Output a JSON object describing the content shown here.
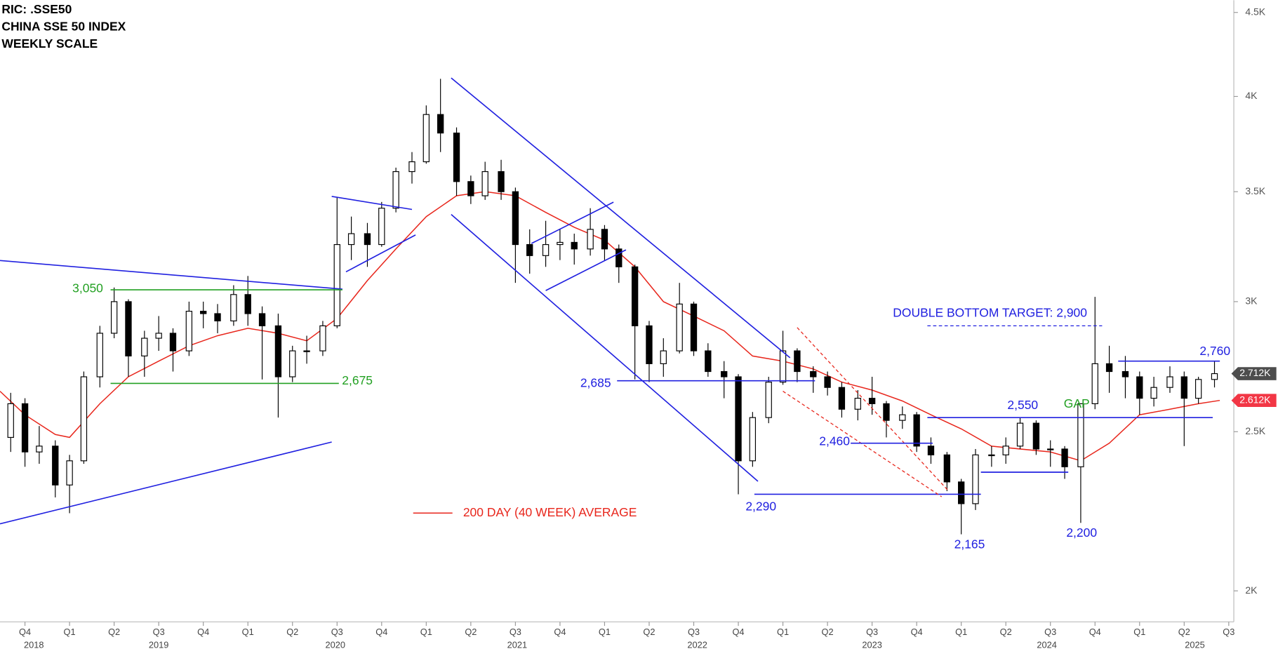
{
  "chart_data": {
    "type": "candlestick",
    "title": "RIC: .SSE50",
    "subtitle": "CHINA SSE 50 INDEX",
    "scale_note": "WEEKLY SCALE",
    "x": [
      2018.67,
      2018.75,
      2018.83,
      2018.92,
      2019.0,
      2019.08,
      2019.17,
      2019.25,
      2019.33,
      2019.42,
      2019.5,
      2019.58,
      2019.67,
      2019.75,
      2019.83,
      2019.92,
      2020.0,
      2020.08,
      2020.17,
      2020.25,
      2020.33,
      2020.42,
      2020.5,
      2020.58,
      2020.67,
      2020.75,
      2020.83,
      2020.92,
      2021.0,
      2021.08,
      2021.17,
      2021.25,
      2021.33,
      2021.42,
      2021.5,
      2021.58,
      2021.67,
      2021.75,
      2021.83,
      2021.92,
      2022.0,
      2022.08,
      2022.17,
      2022.25,
      2022.33,
      2022.42,
      2022.5,
      2022.58,
      2022.67,
      2022.75,
      2022.83,
      2022.92,
      2023.0,
      2023.08,
      2023.17,
      2023.25,
      2023.33,
      2023.42,
      2023.5,
      2023.58,
      2023.67,
      2023.75,
      2023.83,
      2023.92,
      2024.0,
      2024.08,
      2024.17,
      2024.25,
      2024.33,
      2024.42,
      2024.5,
      2024.58,
      2024.67,
      2024.75,
      2024.83,
      2024.92,
      2025.0,
      2025.08,
      2025.17,
      2025.25,
      2025.33,
      2025.42
    ],
    "open": [
      2480,
      2600,
      2430,
      2450,
      2320,
      2400,
      2700,
      2870,
      3000,
      2780,
      2850,
      2870,
      2800,
      2960,
      2950,
      2920,
      3030,
      2950,
      2900,
      2700,
      2800,
      2800,
      2900,
      3250,
      3300,
      3250,
      3420,
      3600,
      3650,
      3900,
      3800,
      3550,
      3480,
      3600,
      3500,
      3250,
      3200,
      3250,
      3260,
      3230,
      3320,
      3230,
      3150,
      2900,
      2750,
      2800,
      2990,
      2800,
      2720,
      2700,
      2400,
      2550,
      2680,
      2800,
      2720,
      2700,
      2660,
      2580,
      2620,
      2600,
      2540,
      2560,
      2450,
      2420,
      2330,
      2260,
      2420,
      2420,
      2450,
      2530,
      2440,
      2440,
      2380,
      2600,
      2750,
      2720,
      2700,
      2620,
      2660,
      2700,
      2620,
      2690
    ],
    "high": [
      2640,
      2620,
      2520,
      2470,
      2420,
      2720,
      2900,
      3060,
      3010,
      2880,
      2940,
      2890,
      3000,
      3000,
      2990,
      3070,
      3110,
      2980,
      2950,
      2820,
      2860,
      2920,
      3470,
      3380,
      3350,
      3450,
      3620,
      3700,
      3950,
      4100,
      3830,
      3580,
      3650,
      3660,
      3520,
      3320,
      3360,
      3320,
      3300,
      3420,
      3340,
      3250,
      3160,
      2920,
      2850,
      3080,
      3000,
      2830,
      2760,
      2710,
      2570,
      2700,
      2880,
      2810,
      2740,
      2720,
      2680,
      2650,
      2700,
      2610,
      2590,
      2570,
      2480,
      2430,
      2340,
      2440,
      2450,
      2480,
      2550,
      2540,
      2470,
      2450,
      2600,
      3020,
      2820,
      2780,
      2720,
      2700,
      2740,
      2720,
      2700,
      2760
    ],
    "low": [
      2430,
      2380,
      2390,
      2280,
      2230,
      2390,
      2660,
      2850,
      2700,
      2700,
      2800,
      2720,
      2780,
      2890,
      2870,
      2900,
      2900,
      2690,
      2550,
      2680,
      2750,
      2780,
      2890,
      3180,
      3150,
      3240,
      3400,
      3540,
      3640,
      3700,
      3480,
      3440,
      3460,
      3460,
      3080,
      3120,
      3150,
      3180,
      3160,
      3200,
      3180,
      3080,
      2690,
      2680,
      2700,
      2790,
      2780,
      2700,
      2620,
      2290,
      2380,
      2530,
      2670,
      2680,
      2640,
      2630,
      2550,
      2540,
      2560,
      2480,
      2510,
      2430,
      2390,
      2300,
      2165,
      2240,
      2380,
      2390,
      2440,
      2420,
      2380,
      2340,
      2200,
      2580,
      2640,
      2620,
      2560,
      2590,
      2640,
      2450,
      2600,
      2660
    ],
    "close": [
      2600,
      2430,
      2450,
      2320,
      2400,
      2700,
      2870,
      3000,
      2780,
      2850,
      2870,
      2800,
      2960,
      2950,
      2920,
      3030,
      2950,
      2900,
      2700,
      2800,
      2800,
      2900,
      3250,
      3300,
      3250,
      3420,
      3600,
      3650,
      3900,
      3800,
      3550,
      3480,
      3600,
      3500,
      3250,
      3200,
      3250,
      3260,
      3230,
      3320,
      3230,
      3150,
      2900,
      2750,
      2800,
      2990,
      2800,
      2720,
      2700,
      2400,
      2550,
      2680,
      2800,
      2720,
      2700,
      2660,
      2580,
      2620,
      2600,
      2540,
      2560,
      2450,
      2420,
      2330,
      2260,
      2420,
      2420,
      2450,
      2530,
      2440,
      2440,
      2380,
      2600,
      2750,
      2720,
      2700,
      2620,
      2660,
      2700,
      2620,
      2690,
      2712
    ],
    "up_color": "#ffffff",
    "down_color": "#000000",
    "moving_average": {
      "name": "200 DAY (40 WEEK) AVERAGE",
      "color": "#e8261c",
      "x": [
        2018.61,
        2018.75,
        2018.92,
        2019.0,
        2019.17,
        2019.33,
        2019.5,
        2019.67,
        2019.83,
        2020.0,
        2020.17,
        2020.33,
        2020.5,
        2020.67,
        2020.83,
        2021.0,
        2021.17,
        2021.33,
        2021.5,
        2021.67,
        2021.83,
        2022.0,
        2022.17,
        2022.33,
        2022.5,
        2022.67,
        2022.83,
        2023.0,
        2023.17,
        2023.33,
        2023.5,
        2023.67,
        2023.83,
        2024.0,
        2024.17,
        2024.33,
        2024.5,
        2024.67,
        2024.83,
        2025.0,
        2025.17,
        2025.33,
        2025.45
      ],
      "values": [
        2646,
        2560,
        2490,
        2480,
        2600,
        2700,
        2760,
        2820,
        2860,
        2890,
        2870,
        2840,
        2930,
        3090,
        3230,
        3380,
        3480,
        3500,
        3480,
        3400,
        3330,
        3270,
        3150,
        3000,
        2940,
        2880,
        2780,
        2760,
        2730,
        2680,
        2650,
        2610,
        2560,
        2510,
        2450,
        2440,
        2430,
        2400,
        2460,
        2560,
        2580,
        2600,
        2612
      ]
    },
    "trend_lines": [
      {
        "x": [
          2018.61,
          2020.53
        ],
        "y": [
          3178,
          3053
        ],
        "color": "#2020e0",
        "dashed": false
      },
      {
        "x": [
          2018.61,
          2020.47
        ],
        "y": [
          2197,
          2464
        ],
        "color": "#2020e0",
        "dashed": false
      },
      {
        "x": [
          2019.23,
          2020.53
        ],
        "y": [
          3050,
          3050
        ],
        "color": "#22a022",
        "dashed": false
      },
      {
        "x": [
          2019.23,
          2020.51
        ],
        "y": [
          2675,
          2675
        ],
        "color": "#22a022",
        "dashed": false
      },
      {
        "x": [
          2020.47,
          2020.92
        ],
        "y": [
          3477,
          3414
        ],
        "color": "#2020e0",
        "dashed": false
      },
      {
        "x": [
          2020.55,
          2020.94
        ],
        "y": [
          3128,
          3294
        ],
        "color": "#2020e0",
        "dashed": false
      },
      {
        "x": [
          2021.14,
          2023.04
        ],
        "y": [
          4105,
          2773
        ],
        "color": "#2020e0",
        "dashed": false
      },
      {
        "x": [
          2021.14,
          2022.86
        ],
        "y": [
          3390,
          2332
        ],
        "color": "#2020e0",
        "dashed": false
      },
      {
        "x": [
          2021.59,
          2022.05
        ],
        "y": [
          3255,
          3449
        ],
        "color": "#2020e0",
        "dashed": false
      },
      {
        "x": [
          2021.67,
          2022.12
        ],
        "y": [
          3047,
          3226
        ],
        "color": "#2020e0",
        "dashed": false
      },
      {
        "x": [
          2022.07,
          2023.18
        ],
        "y": [
          2685,
          2685
        ],
        "color": "#2020e0",
        "dashed": false
      },
      {
        "x": [
          2022.84,
          2024.11
        ],
        "y": [
          2290,
          2290
        ],
        "color": "#2020e0",
        "dashed": false
      },
      {
        "x": [
          2023.08,
          2023.93
        ],
        "y": [
          2893,
          2300
        ],
        "color": "#e8261c",
        "dashed": true
      },
      {
        "x": [
          2023.0,
          2023.89
        ],
        "y": [
          2646,
          2282
        ],
        "color": "#e8261c",
        "dashed": true
      },
      {
        "x": [
          2023.38,
          2023.84
        ],
        "y": [
          2460,
          2460
        ],
        "color": "#2020e0",
        "dashed": false
      },
      {
        "x": [
          2023.81,
          2025.41
        ],
        "y": [
          2550,
          2550
        ],
        "color": "#2020e0",
        "dashed": false
      },
      {
        "x": [
          2024.11,
          2024.6
        ],
        "y": [
          2362,
          2362
        ],
        "color": "#2020e0",
        "dashed": false
      },
      {
        "x": [
          2023.81,
          2024.79
        ],
        "y": [
          2900,
          2900
        ],
        "color": "#2020e0",
        "dashed": true
      },
      {
        "x": [
          2024.88,
          2025.45
        ],
        "y": [
          2760,
          2760
        ],
        "color": "#2020e0",
        "dashed": false
      }
    ],
    "annotations": [
      {
        "text": "3,050",
        "color": "#22a022"
      },
      {
        "text": "2,675",
        "color": "#22a022"
      },
      {
        "text": "2,685",
        "color": "#2020e0"
      },
      {
        "text": "2,290",
        "color": "#2020e0"
      },
      {
        "text": "2,460",
        "color": "#2020e0"
      },
      {
        "text": "2,165",
        "color": "#2020e0"
      },
      {
        "text": "2,200",
        "color": "#2020e0"
      },
      {
        "text": "2,550",
        "color": "#2020e0"
      },
      {
        "text": "2,760",
        "color": "#2020e0"
      },
      {
        "text": "GAP",
        "color": "#22a022"
      },
      {
        "text": "DOUBLE BOTTOM TARGET: 2,900",
        "color": "#2020e0"
      }
    ],
    "price_tags": [
      {
        "value": 2712,
        "label": "2.712K",
        "color": "#4d4d4d"
      },
      {
        "value": 2612,
        "label": "2.612K",
        "color": "#f23645"
      }
    ],
    "log_scale": true,
    "xlim": [
      2018.61,
      2025.51
    ],
    "ylim": [
      1915,
      4578
    ],
    "yticks": [
      {
        "value": 2000,
        "label": "2K"
      },
      {
        "value": 2500,
        "label": "2.5K"
      },
      {
        "value": 3000,
        "label": "3K"
      },
      {
        "value": 3500,
        "label": "3.5K"
      },
      {
        "value": 4000,
        "label": "4K"
      },
      {
        "value": 4500,
        "label": "4.5K"
      }
    ],
    "xticks": [
      {
        "value": 2018.75,
        "label": "Q4"
      },
      {
        "value": 2019.0,
        "label": "Q1"
      },
      {
        "value": 2019.25,
        "label": "Q2"
      },
      {
        "value": 2019.5,
        "label": "Q3"
      },
      {
        "value": 2019.75,
        "label": "Q4"
      },
      {
        "value": 2020.0,
        "label": "Q1"
      },
      {
        "value": 2020.25,
        "label": "Q2"
      },
      {
        "value": 2020.5,
        "label": "Q3"
      },
      {
        "value": 2020.75,
        "label": "Q4"
      },
      {
        "value": 2021.0,
        "label": "Q1"
      },
      {
        "value": 2021.25,
        "label": "Q2"
      },
      {
        "value": 2021.5,
        "label": "Q3"
      },
      {
        "value": 2021.75,
        "label": "Q4"
      },
      {
        "value": 2022.0,
        "label": "Q1"
      },
      {
        "value": 2022.25,
        "label": "Q2"
      },
      {
        "value": 2022.5,
        "label": "Q3"
      },
      {
        "value": 2022.75,
        "label": "Q4"
      },
      {
        "value": 2023.0,
        "label": "Q1"
      },
      {
        "value": 2023.25,
        "label": "Q2"
      },
      {
        "value": 2023.5,
        "label": "Q3"
      },
      {
        "value": 2023.75,
        "label": "Q4"
      },
      {
        "value": 2024.0,
        "label": "Q1"
      },
      {
        "value": 2024.25,
        "label": "Q2"
      },
      {
        "value": 2024.5,
        "label": "Q3"
      },
      {
        "value": 2024.75,
        "label": "Q4"
      },
      {
        "value": 2025.0,
        "label": "Q1"
      },
      {
        "value": 2025.25,
        "label": "Q2"
      },
      {
        "value": 2025.5,
        "label": "Q3"
      }
    ],
    "year_ticks": [
      {
        "value": 2018.8,
        "label": "2018"
      },
      {
        "value": 2019.5,
        "label": "2019"
      },
      {
        "value": 2020.49,
        "label": "2020"
      },
      {
        "value": 2021.51,
        "label": "2021"
      },
      {
        "value": 2022.52,
        "label": "2022"
      },
      {
        "value": 2023.5,
        "label": "2023"
      },
      {
        "value": 2024.48,
        "label": "2024"
      },
      {
        "value": 2025.31,
        "label": "2025"
      }
    ]
  }
}
